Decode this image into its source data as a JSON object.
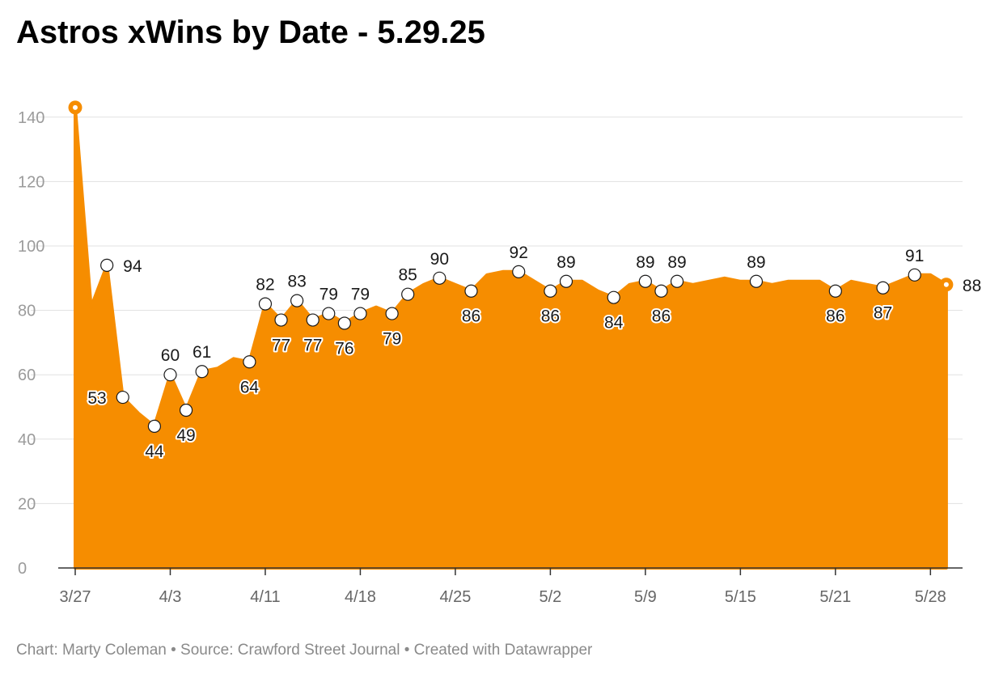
{
  "title": "Astros xWins by Date - 5.29.25",
  "footer": {
    "text": "Chart: Marty Coleman • Source: Crawford Street Journal • Created with Datawrapper"
  },
  "colors": {
    "area": "#f68d00",
    "grid": "#e1e1e1",
    "axis": "#333333",
    "marker_fill": "#ffffff",
    "marker_stroke": "#1a1a1a"
  },
  "chart_data": {
    "type": "area",
    "title": "Astros xWins by Date - 5.29.25",
    "xlabel": "",
    "ylabel": "",
    "ylim": [
      0,
      140
    ],
    "y_ticks": [
      0,
      20,
      40,
      60,
      80,
      100,
      120,
      140
    ],
    "grid": true,
    "x_start": "3/27",
    "x_ticks": [
      {
        "day": 0,
        "label": "3/27"
      },
      {
        "day": 6,
        "label": "4/3"
      },
      {
        "day": 12,
        "label": "4/11"
      },
      {
        "day": 18,
        "label": "4/18"
      },
      {
        "day": 24,
        "label": "4/25"
      },
      {
        "day": 30,
        "label": "5/2"
      },
      {
        "day": 36,
        "label": "5/9"
      },
      {
        "day": 42,
        "label": "5/15"
      },
      {
        "day": 48,
        "label": "5/21"
      },
      {
        "day": 54,
        "label": "5/28"
      }
    ],
    "series": [
      {
        "name": "xWins",
        "x": [
          0,
          1,
          2,
          3,
          4,
          5,
          6,
          7,
          8,
          9,
          10,
          11,
          12,
          13,
          14,
          15,
          16,
          17,
          18,
          19,
          20,
          21,
          22,
          23,
          24,
          25,
          26,
          27,
          28,
          29,
          30,
          31,
          32,
          33,
          34,
          35,
          36,
          37,
          38,
          39,
          40,
          41,
          42,
          43,
          44,
          45,
          46,
          47,
          48,
          49,
          50,
          51,
          52,
          53,
          54,
          55
        ],
        "values": [
          143,
          81,
          94,
          53,
          48,
          44,
          60,
          49,
          61,
          62,
          65,
          64,
          82,
          77,
          83,
          77,
          79,
          76,
          79,
          81,
          79,
          85,
          88,
          90,
          88,
          86,
          91,
          92,
          92,
          89,
          86,
          89,
          89,
          86,
          84,
          88,
          89,
          86,
          89,
          88,
          89,
          90,
          89,
          89,
          88,
          89,
          89,
          89,
          86,
          89,
          88,
          87,
          89,
          91,
          91,
          88
        ]
      }
    ],
    "labeled_points": [
      {
        "i": 0,
        "value": 143,
        "label": "",
        "style": "end-dot"
      },
      {
        "i": 2,
        "value": 94,
        "label": "94",
        "pos": "right"
      },
      {
        "i": 3,
        "value": 53,
        "label": "53",
        "pos": "left"
      },
      {
        "i": 5,
        "value": 44,
        "label": "44",
        "pos": "below"
      },
      {
        "i": 6,
        "value": 60,
        "label": "60",
        "pos": "above"
      },
      {
        "i": 7,
        "value": 49,
        "label": "49",
        "pos": "below"
      },
      {
        "i": 8,
        "value": 61,
        "label": "61",
        "pos": "above"
      },
      {
        "i": 11,
        "value": 64,
        "label": "64",
        "pos": "below"
      },
      {
        "i": 12,
        "value": 82,
        "label": "82",
        "pos": "above"
      },
      {
        "i": 13,
        "value": 77,
        "label": "77",
        "pos": "below"
      },
      {
        "i": 14,
        "value": 83,
        "label": "83",
        "pos": "above"
      },
      {
        "i": 15,
        "value": 77,
        "label": "77",
        "pos": "below"
      },
      {
        "i": 16,
        "value": 79,
        "label": "79",
        "pos": "above"
      },
      {
        "i": 17,
        "value": 76,
        "label": "76",
        "pos": "below"
      },
      {
        "i": 18,
        "value": 79,
        "label": "79",
        "pos": "above"
      },
      {
        "i": 20,
        "value": 79,
        "label": "79",
        "pos": "below"
      },
      {
        "i": 21,
        "value": 85,
        "label": "85",
        "pos": "above"
      },
      {
        "i": 23,
        "value": 90,
        "label": "90",
        "pos": "above"
      },
      {
        "i": 25,
        "value": 86,
        "label": "86",
        "pos": "below"
      },
      {
        "i": 28,
        "value": 92,
        "label": "92",
        "pos": "above"
      },
      {
        "i": 30,
        "value": 86,
        "label": "86",
        "pos": "below"
      },
      {
        "i": 31,
        "value": 89,
        "label": "89",
        "pos": "above"
      },
      {
        "i": 34,
        "value": 84,
        "label": "84",
        "pos": "below"
      },
      {
        "i": 36,
        "value": 89,
        "label": "89",
        "pos": "above"
      },
      {
        "i": 37,
        "value": 86,
        "label": "86",
        "pos": "below"
      },
      {
        "i": 38,
        "value": 89,
        "label": "89",
        "pos": "above"
      },
      {
        "i": 43,
        "value": 89,
        "label": "89",
        "pos": "above"
      },
      {
        "i": 48,
        "value": 86,
        "label": "86",
        "pos": "below"
      },
      {
        "i": 51,
        "value": 87,
        "label": "87",
        "pos": "below"
      },
      {
        "i": 53,
        "value": 91,
        "label": "91",
        "pos": "above"
      },
      {
        "i": 55,
        "value": 88,
        "label": "88",
        "pos": "right",
        "style": "end-dot"
      }
    ]
  }
}
